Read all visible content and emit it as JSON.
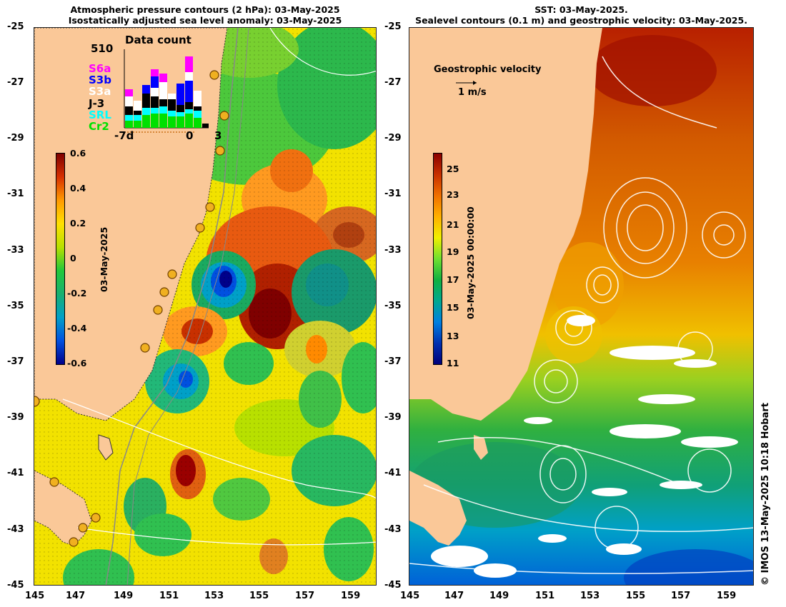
{
  "left_panel": {
    "title_line1": "Atmospheric pressure contours (2 hPa): 03-May-2025",
    "title_line2": "Isostatically adjusted sea level anomaly: 03-May-2025",
    "colorbar": {
      "label": "03-May-2025",
      "ticks": [
        "0.6",
        "0.4",
        "0.2",
        "0",
        "-0.2",
        "-0.4",
        "-0.6"
      ],
      "colors": [
        "#7f0000",
        "#d73000",
        "#ff9a00",
        "#ffe000",
        "#b8e000",
        "#22c83a",
        "#18b070",
        "#00a0c8",
        "#0050e0",
        "#00008a"
      ]
    },
    "data_count": {
      "title": "Data count",
      "max_label": "510",
      "missions": [
        {
          "name": "S6a",
          "color": "#ff00ff"
        },
        {
          "name": "S3b",
          "color": "#0000ff"
        },
        {
          "name": "S3a",
          "color": "#ffffff"
        },
        {
          "name": "J-3",
          "color": "#000000"
        },
        {
          "name": "SRL",
          "color": "#00ffff"
        },
        {
          "name": "Cr2",
          "color": "#00e000"
        }
      ],
      "x_labels": [
        "-7d",
        "0",
        "3"
      ]
    }
  },
  "right_panel": {
    "title_line1": "SST: 03-May-2025.",
    "title_line2": "Sealevel contours (0.1 m) and geostrophic velocity: 03-May-2025.",
    "velocity_label": "Geostrophic velocity",
    "velocity_scale": "1 m/s",
    "colorbar": {
      "label": "03-May-2025 00:00:00",
      "ticks": [
        "25",
        "23",
        "21",
        "19",
        "17",
        "15",
        "13",
        "11"
      ],
      "colors": [
        "#8a0000",
        "#c83000",
        "#f07000",
        "#ffb000",
        "#f0f000",
        "#70e030",
        "#10b040",
        "#00a890",
        "#0080e0",
        "#0030b0",
        "#00007a"
      ]
    }
  },
  "axes": {
    "y_ticks": [
      "-25",
      "-27",
      "-29",
      "-31",
      "-33",
      "-35",
      "-37",
      "-39",
      "-41",
      "-43",
      "-45"
    ],
    "x_ticks": [
      "145",
      "147",
      "149",
      "151",
      "153",
      "155",
      "157",
      "159"
    ]
  },
  "copyright": "© IMOS 13-May-2025 10:18 Hobart",
  "colors": {
    "land": "#fac898",
    "sla_background": "#f2e200",
    "sst_warm": "#d25a00"
  }
}
